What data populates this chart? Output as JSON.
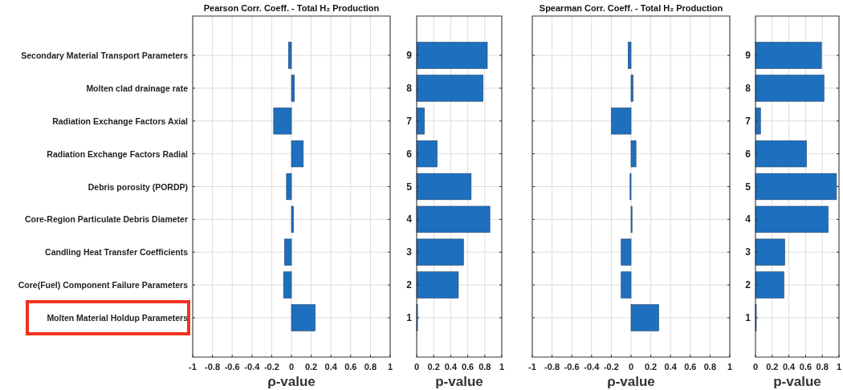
{
  "chart_data": [
    {
      "type": "bar",
      "orientation": "horizontal",
      "title": "Pearson Corr. Coeff. - Total H₂ Production",
      "xlabel": "ρ-value",
      "categories": [
        "Secondary Material Transport Parameters",
        "Molten clad drainage rate",
        "Radiation Exchange Factors Axial",
        "Radiation Exchange Factors Radial",
        "Debris porosity (PORDP)",
        "Core-Region Particulate Debris Diameter",
        "Candling Heat Transfer Coefficients",
        "Core(Fuel) Component Failure Parameters",
        "Molten Material Holdup Parameters"
      ],
      "values": [
        -0.03,
        0.03,
        -0.18,
        0.12,
        -0.05,
        0.02,
        -0.07,
        -0.08,
        0.24
      ],
      "color": "#1f6fbf",
      "xlim": [
        -1,
        1
      ],
      "xticks": [
        -1,
        -0.8,
        -0.6,
        -0.4,
        -0.2,
        0,
        0.2,
        0.4,
        0.6,
        0.8,
        1
      ],
      "grid": true
    },
    {
      "type": "bar",
      "orientation": "horizontal",
      "xlabel": "p-value",
      "categories": [
        "9",
        "8",
        "7",
        "6",
        "5",
        "4",
        "3",
        "2",
        "1"
      ],
      "values": [
        0.83,
        0.78,
        0.09,
        0.24,
        0.64,
        0.86,
        0.55,
        0.49,
        0.01
      ],
      "color": "#1f6fbf",
      "xlim": [
        0,
        1
      ],
      "xticks": [
        0,
        0.2,
        0.4,
        0.6,
        0.8,
        1
      ],
      "grid": true
    },
    {
      "type": "bar",
      "orientation": "horizontal",
      "title": "Spearman Corr. Coeff. - Total H₂ Production",
      "xlabel": "ρ-value",
      "categories": [
        null,
        null,
        null,
        null,
        null,
        null,
        null,
        null,
        null
      ],
      "values": [
        -0.03,
        0.02,
        -0.2,
        0.05,
        -0.01,
        0.01,
        -0.1,
        -0.1,
        0.28
      ],
      "color": "#1f6fbf",
      "xlim": [
        -1,
        1
      ],
      "xticks": [
        -1,
        -0.8,
        -0.6,
        -0.4,
        -0.2,
        0,
        0.2,
        0.4,
        0.6,
        0.8,
        1
      ],
      "grid": true,
      "tick_labels": "x"
    },
    {
      "type": "bar",
      "orientation": "horizontal",
      "xlabel": "p-value",
      "categories": [
        "9",
        "8",
        "7",
        "6",
        "5",
        "4",
        "3",
        "2",
        "1"
      ],
      "values": [
        0.79,
        0.82,
        0.06,
        0.61,
        0.97,
        0.87,
        0.35,
        0.34,
        0.01
      ],
      "color": "#1f6fbf",
      "xlim": [
        0,
        1
      ],
      "xticks": [
        0,
        0.2,
        0.4,
        0.6,
        0.8,
        1
      ],
      "grid": true
    }
  ]
}
